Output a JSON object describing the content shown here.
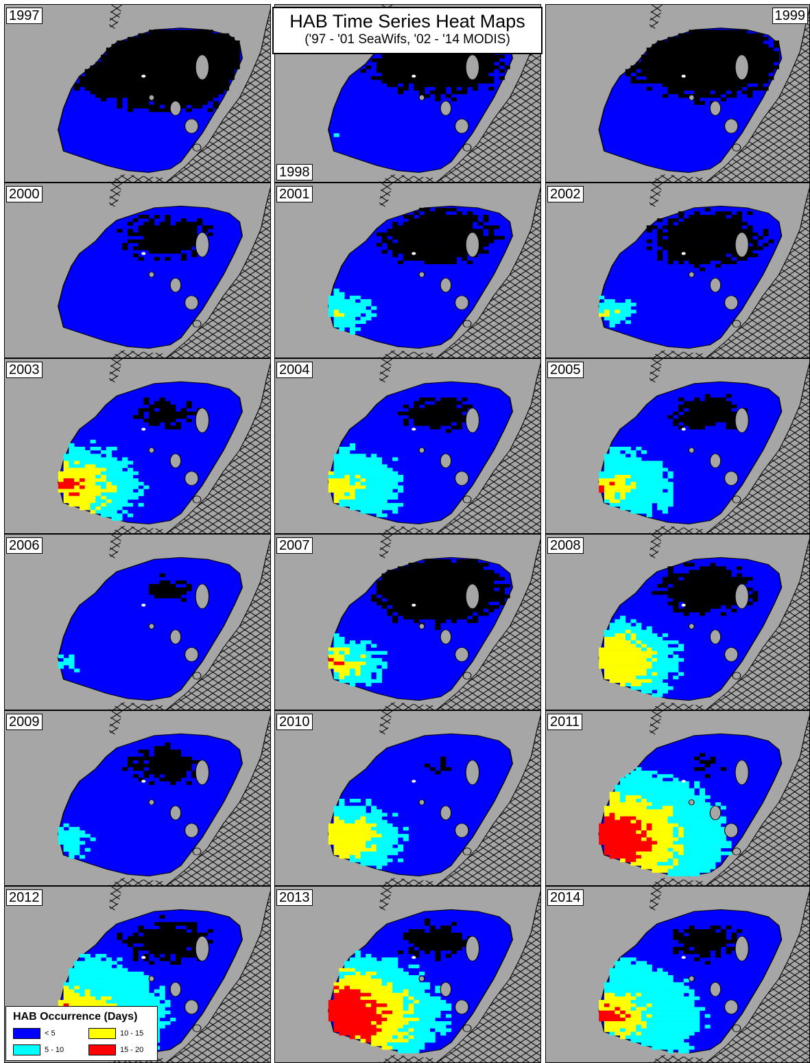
{
  "title": "HAB Time Series Heat Maps",
  "subtitle": "('97 - '01 SeaWifs, '02 - '14 MODIS)",
  "colors": {
    "land": "#a6a6a6",
    "none": "#000000",
    "lt5": "#0000ff",
    "d5_10": "#00ffff",
    "d10_15": "#ffff00",
    "d15_20": "#ff0000",
    "hatch": "#000000"
  },
  "legend": {
    "title": "HAB Occurrence (Days)",
    "items": [
      {
        "label": "< 5",
        "color": "#0000ff"
      },
      {
        "label": "10 - 15",
        "color": "#ffff00"
      },
      {
        "label": "5 - 10",
        "color": "#00ffff"
      },
      {
        "label": "15 - 20",
        "color": "#ff0000"
      }
    ]
  },
  "panels": [
    {
      "year": "1997",
      "label_corner": "top-left",
      "cyan": 0,
      "yellow": 0,
      "red": 0,
      "black": 0.75
    },
    {
      "year": "1998",
      "label_corner": "bottom-left",
      "cyan": 0.08,
      "yellow": 0,
      "red": 0,
      "black": 0.55
    },
    {
      "year": "1999",
      "label_corner": "top-right",
      "cyan": 0.05,
      "yellow": 0,
      "red": 0,
      "black": 0.6
    },
    {
      "year": "2000",
      "label_corner": "top-left",
      "cyan": 0,
      "yellow": 0,
      "red": 0,
      "black": 0.35
    },
    {
      "year": "2001",
      "label_corner": "top-left",
      "cyan": 0.3,
      "yellow": 0.1,
      "red": 0,
      "black": 0.45
    },
    {
      "year": "2002",
      "label_corner": "top-left",
      "cyan": 0.25,
      "yellow": 0.15,
      "red": 0,
      "black": 0.45
    },
    {
      "year": "2003",
      "label_corner": "top-left",
      "cyan": 0.6,
      "yellow": 0.5,
      "red": 0.3,
      "black": 0.25
    },
    {
      "year": "2004",
      "label_corner": "top-left",
      "cyan": 0.55,
      "yellow": 0.3,
      "red": 0,
      "black": 0.3
    },
    {
      "year": "2005",
      "label_corner": "top-left",
      "cyan": 0.55,
      "yellow": 0.3,
      "red": 0.15,
      "black": 0.3
    },
    {
      "year": "2006",
      "label_corner": "top-left",
      "cyan": 0.15,
      "yellow": 0,
      "red": 0,
      "black": 0.2
    },
    {
      "year": "2007",
      "label_corner": "top-left",
      "cyan": 0.4,
      "yellow": 0.3,
      "red": 0.15,
      "black": 0.55
    },
    {
      "year": "2008",
      "label_corner": "top-left",
      "cyan": 0.6,
      "yellow": 0.55,
      "red": 0.15,
      "black": 0.4
    },
    {
      "year": "2009",
      "label_corner": "top-left",
      "cyan": 0.25,
      "yellow": 0,
      "red": 0,
      "black": 0.3
    },
    {
      "year": "2010",
      "label_corner": "top-left",
      "cyan": 0.55,
      "yellow": 0.45,
      "red": 0,
      "black": 0.15
    },
    {
      "year": "2011",
      "label_corner": "top-left",
      "cyan": 0.95,
      "yellow": 0.8,
      "red": 0.7,
      "black": 0.15
    },
    {
      "year": "2012",
      "label_corner": "top-left",
      "cyan": 0.8,
      "yellow": 0.5,
      "red": 0.35,
      "black": 0.35
    },
    {
      "year": "2013",
      "label_corner": "top-left",
      "cyan": 0.85,
      "yellow": 0.8,
      "red": 0.75,
      "black": 0.3
    },
    {
      "year": "2014",
      "label_corner": "top-left",
      "cyan": 0.75,
      "yellow": 0.45,
      "red": 0.35,
      "black": 0.3
    }
  ]
}
